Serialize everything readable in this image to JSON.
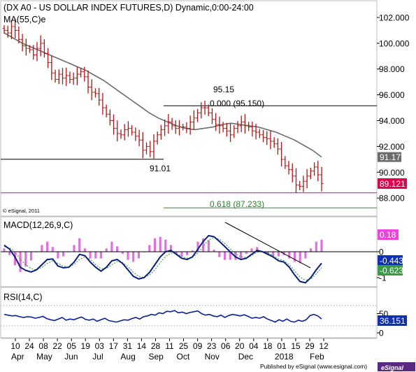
{
  "chart_data": [
    {
      "type": "ohlc",
      "panel": "price",
      "title": "(DX A0 - US DOLLAR INDEX FUTURES,D) Dynamic,0:00-24:00",
      "moving_average_label": "MA(55,C)e",
      "copyright": "© eSignal, 2011",
      "y_ticks": [
        "102.000",
        "100.000",
        "98.000",
        "96.000",
        "94.000",
        "92.000",
        "90.000",
        "88.000"
      ],
      "ylim": [
        86.6,
        103.3
      ],
      "last_close": 89.121,
      "last_close_label": "89.121",
      "ma_last": 91.177,
      "ma_last_label": "91.177",
      "closes": [
        101.0,
        100.8,
        101.3,
        101.0,
        100.3,
        99.8,
        99.6,
        99.5,
        99.1,
        99.6,
        100.0,
        99.2,
        98.5,
        97.7,
        97.2,
        97.6,
        97.3,
        97.5,
        97.2,
        97.3,
        97.6,
        97.8,
        97.4,
        96.6,
        96.2,
        96.1,
        95.6,
        95.0,
        94.5,
        94.0,
        93.4,
        93.0,
        92.9,
        93.3,
        93.4,
        93.1,
        92.8,
        92.5,
        91.7,
        92.0,
        91.6,
        92.4,
        92.9,
        93.3,
        93.6,
        93.9,
        93.6,
        93.4,
        93.5,
        93.5,
        93.4,
        93.9,
        94.2,
        94.6,
        95.0,
        95.0,
        94.6,
        94.1,
        93.7,
        93.6,
        93.4,
        93.2,
        92.9,
        93.4,
        93.6,
        93.9,
        93.6,
        93.5,
        93.2,
        93.1,
        92.9,
        92.7,
        92.6,
        92.4,
        92.2,
        91.8,
        91.0,
        90.5,
        90.2,
        89.7,
        89.0,
        88.9,
        89.3,
        89.7,
        90.1,
        90.4,
        89.8,
        89.121
      ],
      "ma_values": [
        100.8,
        100.4,
        100.0,
        99.7,
        99.4,
        99.1,
        98.8,
        98.5,
        98.2,
        97.9,
        97.5,
        97.1,
        96.6,
        96.1,
        95.6,
        95.1,
        94.6,
        94.2,
        93.9,
        93.6,
        93.4,
        93.3,
        93.4,
        93.5,
        93.7,
        93.8,
        93.7,
        93.6,
        93.5,
        93.3,
        93.1,
        92.8,
        92.5,
        92.1,
        91.7,
        91.177
      ],
      "annotations": [
        {
          "text": "95.15",
          "x_label": "06",
          "value": 95.15
        },
        {
          "text": "0.000 (95.150)",
          "value": 95.15
        },
        {
          "text": "91.01",
          "x_label": "28",
          "value": 91.01
        },
        {
          "text": "0.618 (87.233)",
          "value": 87.233
        }
      ],
      "horizontal_levels": [
        {
          "value": 95.15,
          "color": "#000000"
        },
        {
          "value": 91.01,
          "color": "#000000"
        },
        {
          "value": 88.4,
          "color": "#a6226a"
        },
        {
          "value": 87.233,
          "color": "#2e8b2e"
        }
      ]
    },
    {
      "type": "macd",
      "panel": "macd",
      "label": "MACD(12,26,9,C)",
      "y_ticks": [
        "0",
        "-1"
      ],
      "ylim": [
        -1.35,
        1.35
      ],
      "values": [
        0.25,
        0.1,
        -0.2,
        -0.6,
        -0.72,
        -0.78,
        -0.7,
        -0.5,
        -0.3,
        -0.28,
        -0.55,
        -0.62,
        -0.6,
        -0.4,
        -0.1,
        -0.15,
        -0.4,
        -0.6,
        -0.75,
        -0.6,
        -0.35,
        -0.3,
        -0.45,
        -0.7,
        -0.95,
        -1.05,
        -1.0,
        -0.8,
        -0.5,
        -0.2,
        0.0,
        0.05,
        -0.1,
        -0.25,
        -0.3,
        -0.2,
        0.1,
        0.4,
        0.62,
        0.58,
        0.4,
        0.2,
        0.0,
        -0.2,
        -0.3,
        -0.25,
        -0.1,
        0.05,
        0.0,
        -0.1,
        -0.2,
        -0.35,
        -0.4,
        -0.6,
        -0.9,
        -1.15,
        -1.2,
        -1.0,
        -0.7,
        -0.443
      ],
      "signal": [
        0.2,
        0.15,
        0.0,
        -0.3,
        -0.5,
        -0.65,
        -0.7,
        -0.6,
        -0.45,
        -0.35,
        -0.45,
        -0.55,
        -0.6,
        -0.5,
        -0.3,
        -0.2,
        -0.3,
        -0.5,
        -0.65,
        -0.65,
        -0.5,
        -0.38,
        -0.42,
        -0.58,
        -0.8,
        -0.95,
        -1.0,
        -0.9,
        -0.7,
        -0.42,
        -0.18,
        -0.05,
        -0.07,
        -0.18,
        -0.25,
        -0.22,
        -0.05,
        0.2,
        0.45,
        0.55,
        0.48,
        0.32,
        0.12,
        -0.08,
        -0.2,
        -0.22,
        -0.15,
        -0.02,
        0.0,
        -0.05,
        -0.14,
        -0.28,
        -0.35,
        -0.5,
        -0.75,
        -0.98,
        -1.1,
        -1.05,
        -0.85,
        -0.623
      ],
      "histogram_last": 0.18,
      "labels": {
        "histogram": "0.18",
        "macd": "-0.443",
        "signal": "-0.623"
      }
    },
    {
      "type": "line",
      "panel": "rsi",
      "label": "RSI(14,C)",
      "y_ticks": [
        "50",
        "0"
      ],
      "ylim": [
        0,
        100
      ],
      "values": [
        48,
        46,
        44,
        45,
        42,
        40,
        42,
        41,
        38,
        40,
        43,
        37,
        34,
        32,
        36,
        40,
        33,
        36,
        34,
        38,
        41,
        35,
        33,
        36,
        30,
        34,
        38,
        32,
        30,
        28,
        31,
        34,
        33,
        37,
        40,
        36,
        42,
        44,
        48,
        46,
        52,
        50,
        56,
        55,
        58,
        52,
        54,
        50,
        53,
        55,
        57,
        50,
        46,
        48,
        44,
        42,
        46,
        40,
        45,
        48,
        46,
        44,
        47,
        43,
        38,
        40,
        38,
        42,
        36,
        32,
        28,
        34,
        30,
        36,
        30,
        28,
        33,
        30,
        34,
        45,
        48,
        44,
        36.151
      ],
      "last_label": "36.151"
    }
  ],
  "x_axis": {
    "day_ticks": [
      "10",
      "24",
      "08",
      "22",
      "05",
      "19",
      "03",
      "17",
      "31",
      "14",
      "28",
      "11",
      "25",
      "09",
      "23",
      "06",
      "20",
      "04",
      "18",
      "01",
      "15",
      "29",
      "12"
    ],
    "month_labels": [
      "Apr",
      "May",
      "Jun",
      "Jul",
      "Aug",
      "Sep",
      "Oct",
      "Nov",
      "Dec",
      "2018",
      "Feb"
    ]
  },
  "footer": {
    "published": "Published by eSignal (www.esignal.com)",
    "brand": "eSignal"
  }
}
